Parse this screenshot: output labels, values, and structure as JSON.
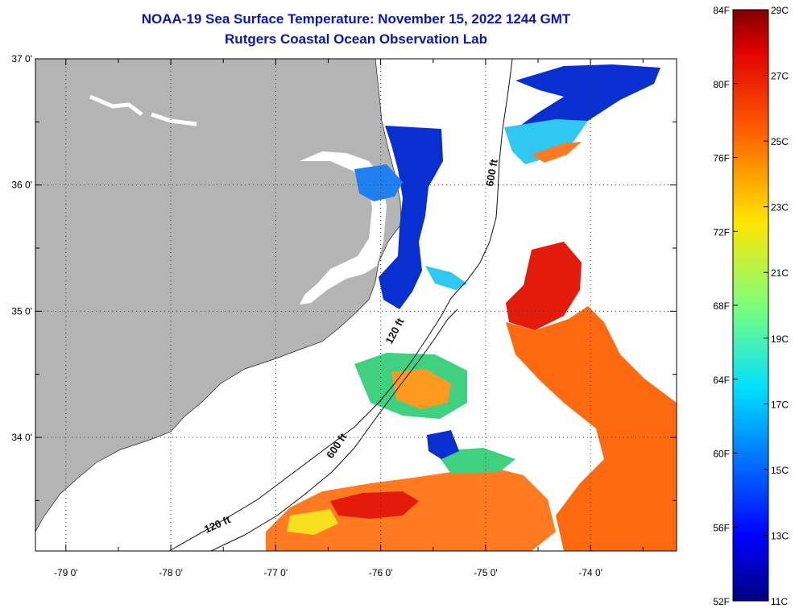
{
  "title": "NOAA-19 Sea Surface Temperature:  November 15, 2022 1244 GMT",
  "subtitle": "Rutgers Coastal Ocean Observation Lab",
  "map": {
    "lat_ticks": [
      {
        "value": 37.0,
        "label": "37 0'"
      },
      {
        "value": 36.5,
        "label": ""
      },
      {
        "value": 36.0,
        "label": "36 0'"
      },
      {
        "value": 35.5,
        "label": ""
      },
      {
        "value": 35.0,
        "label": "35 0'"
      },
      {
        "value": 34.5,
        "label": ""
      },
      {
        "value": 34.0,
        "label": "34 0'"
      },
      {
        "value": 33.5,
        "label": ""
      }
    ],
    "lon_ticks": [
      {
        "value": -79.0,
        "label": "-79 0'"
      },
      {
        "value": -78.5,
        "label": ""
      },
      {
        "value": -78.0,
        "label": "-78 0'"
      },
      {
        "value": -77.5,
        "label": ""
      },
      {
        "value": -77.0,
        "label": "-77 0'"
      },
      {
        "value": -76.5,
        "label": ""
      },
      {
        "value": -76.0,
        "label": "-76 0'"
      },
      {
        "value": -75.5,
        "label": ""
      },
      {
        "value": -75.0,
        "label": "-75 0'"
      },
      {
        "value": -74.5,
        "label": ""
      },
      {
        "value": -74.0,
        "label": "-74 0'"
      },
      {
        "value": -73.5,
        "label": ""
      }
    ],
    "isobath_labels": [
      "600 ft",
      "600 ft",
      "120 ft",
      "120 ft"
    ],
    "colors": {
      "land": "#b4b4b4",
      "cloud": "#ffffff",
      "ocean_cold": "#0022cc",
      "ocean_warm": "#ff6a10"
    }
  },
  "colorbar": {
    "f_labels": [
      "84F",
      "80F",
      "76F",
      "72F",
      "68F",
      "64F",
      "60F",
      "56F",
      "52F"
    ],
    "c_labels": [
      "29C",
      "27C",
      "25C",
      "23C",
      "21C",
      "19C",
      "17C",
      "15C",
      "13C",
      "11C"
    ],
    "c_min": 11,
    "c_max": 29,
    "f_min": 52,
    "f_max": 84
  }
}
